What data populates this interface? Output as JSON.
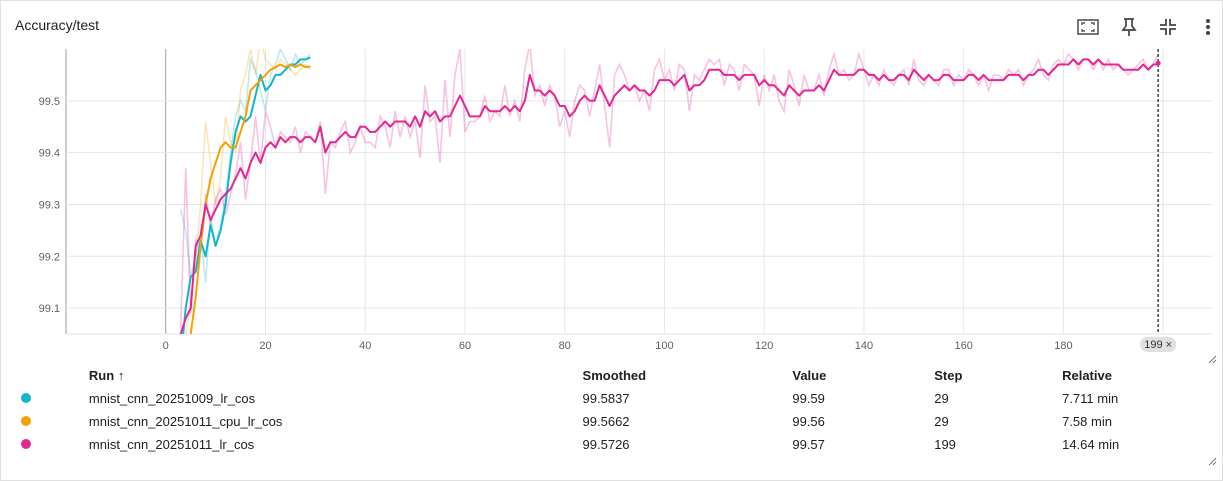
{
  "header": {
    "title": "Accuracy/test",
    "icons": [
      "fit-domain-icon",
      "pin-icon",
      "collapse-icon",
      "more-vert-icon"
    ]
  },
  "table": {
    "columns": [
      "Run",
      "Smoothed",
      "Value",
      "Step",
      "Relative"
    ],
    "sort_indicator": "↑",
    "rows": [
      {
        "color": "#12b5cb",
        "run": "mnist_cnn_20251009_lr_cos",
        "smoothed": "99.5837",
        "value": "99.59",
        "step": "29",
        "relative": "7.711 min"
      },
      {
        "color": "#f4a100",
        "run": "mnist_cnn_20251011_cpu_lr_cos",
        "smoothed": "99.5662",
        "value": "99.56",
        "step": "29",
        "relative": "7.58 min"
      },
      {
        "color": "#e52592",
        "run": "mnist_cnn_20251011_lr_cos",
        "smoothed": "99.5726",
        "value": "99.57",
        "step": "199",
        "relative": "14.64 min"
      }
    ]
  },
  "chart_data": {
    "type": "line",
    "title": "Accuracy/test",
    "xlim": [
      -20,
      210
    ],
    "ylim": [
      99.05,
      99.6
    ],
    "x_ticks": [
      0,
      20,
      40,
      60,
      80,
      100,
      120,
      140,
      160,
      180
    ],
    "y_ticks": [
      99.1,
      99.2,
      99.3,
      99.4,
      99.5
    ],
    "grid": true,
    "hover_step_label": "199 ×",
    "hover_step": 199,
    "series": [
      {
        "name": "mnist_cnn_20251009_lr_cos",
        "color": "#12b5cb",
        "x": [
          3,
          4,
          5,
          6,
          7,
          8,
          9,
          10,
          11,
          12,
          13,
          14,
          15,
          16,
          17,
          18,
          19,
          20,
          21,
          22,
          23,
          24,
          25,
          26,
          27,
          28,
          29
        ],
        "raw": [
          99.29,
          99.25,
          99.16,
          99.2,
          99.24,
          99.15,
          99.28,
          99.22,
          99.26,
          99.32,
          99.4,
          99.47,
          99.5,
          99.48,
          99.58,
          99.56,
          99.52,
          99.48,
          99.55,
          99.57,
          99.6,
          99.58,
          99.56,
          99.59,
          99.57,
          99.58,
          99.59
        ],
        "smoothed": [
          99.0,
          99.1,
          99.16,
          99.17,
          99.23,
          99.2,
          99.26,
          99.22,
          99.25,
          99.3,
          99.38,
          99.44,
          99.47,
          99.46,
          99.47,
          99.51,
          99.55,
          99.52,
          99.53,
          99.55,
          99.55,
          99.56,
          99.57,
          99.57,
          99.58,
          99.58,
          99.5837
        ]
      },
      {
        "name": "mnist_cnn_20251011_cpu_lr_cos",
        "color": "#f4a100",
        "x": [
          4,
          5,
          6,
          7,
          8,
          9,
          10,
          11,
          12,
          13,
          14,
          15,
          16,
          17,
          18,
          19,
          20,
          21,
          22,
          23,
          24,
          25,
          26,
          27,
          28,
          29
        ],
        "raw": [
          99.05,
          99.1,
          99.2,
          99.3,
          99.46,
          99.38,
          99.3,
          99.35,
          99.47,
          99.42,
          99.4,
          99.52,
          99.55,
          99.6,
          99.55,
          99.62,
          99.58,
          99.57,
          99.56,
          99.58,
          99.57,
          99.56,
          99.55,
          99.56,
          99.57,
          99.56
        ],
        "smoothed": [
          99.03,
          99.05,
          99.12,
          99.22,
          99.3,
          99.35,
          99.38,
          99.41,
          99.42,
          99.41,
          99.41,
          99.44,
          99.47,
          99.52,
          99.53,
          99.54,
          99.55,
          99.56,
          99.565,
          99.57,
          99.565,
          99.57,
          99.565,
          99.57,
          99.565,
          99.5662
        ]
      },
      {
        "name": "mnist_cnn_20251011_lr_cos",
        "color": "#e52592",
        "x": [
          3,
          4,
          5,
          6,
          7,
          8,
          9,
          10,
          11,
          12,
          13,
          14,
          15,
          16,
          17,
          18,
          19,
          20,
          21,
          22,
          23,
          24,
          25,
          26,
          27,
          28,
          29,
          30,
          31,
          32,
          33,
          34,
          35,
          36,
          37,
          38,
          39,
          40,
          41,
          42,
          43,
          44,
          45,
          46,
          47,
          48,
          49,
          50,
          51,
          52,
          53,
          54,
          55,
          56,
          57,
          58,
          59,
          60,
          61,
          62,
          63,
          64,
          65,
          66,
          67,
          68,
          69,
          70,
          71,
          72,
          73,
          74,
          75,
          76,
          77,
          78,
          79,
          80,
          81,
          82,
          83,
          84,
          85,
          86,
          87,
          88,
          89,
          90,
          91,
          92,
          93,
          94,
          95,
          96,
          97,
          98,
          99,
          100,
          101,
          102,
          103,
          104,
          105,
          106,
          107,
          108,
          109,
          110,
          111,
          112,
          113,
          114,
          115,
          116,
          117,
          118,
          119,
          120,
          121,
          122,
          123,
          124,
          125,
          126,
          127,
          128,
          129,
          130,
          131,
          132,
          133,
          134,
          135,
          136,
          137,
          138,
          139,
          140,
          141,
          142,
          143,
          144,
          145,
          146,
          147,
          148,
          149,
          150,
          151,
          152,
          153,
          154,
          155,
          156,
          157,
          158,
          159,
          160,
          161,
          162,
          163,
          164,
          165,
          166,
          167,
          168,
          169,
          170,
          171,
          172,
          173,
          174,
          175,
          176,
          177,
          178,
          179,
          180,
          181,
          182,
          183,
          184,
          185,
          186,
          187,
          188,
          189,
          190,
          191,
          192,
          193,
          194,
          195,
          196,
          197,
          198,
          199
        ],
        "raw": [
          99.06,
          99.37,
          99.09,
          99.23,
          99.21,
          99.32,
          99.26,
          99.31,
          99.33,
          99.28,
          99.32,
          99.36,
          99.42,
          99.31,
          99.38,
          99.47,
          99.38,
          99.48,
          99.45,
          99.41,
          99.44,
          99.43,
          99.42,
          99.45,
          99.4,
          99.44,
          99.43,
          99.42,
          99.46,
          99.32,
          99.42,
          99.41,
          99.44,
          99.46,
          99.4,
          99.42,
          99.45,
          99.42,
          99.42,
          99.41,
          99.47,
          99.45,
          99.41,
          99.48,
          99.43,
          99.47,
          99.43,
          99.46,
          99.39,
          99.53,
          99.46,
          99.47,
          99.38,
          99.54,
          99.43,
          99.55,
          99.6,
          99.44,
          99.46,
          99.46,
          99.47,
          99.51,
          99.46,
          99.48,
          99.47,
          99.53,
          99.47,
          99.5,
          99.46,
          99.56,
          99.61,
          99.51,
          99.53,
          99.49,
          99.53,
          99.51,
          99.45,
          99.48,
          99.43,
          99.5,
          99.53,
          99.52,
          99.47,
          99.52,
          99.57,
          99.49,
          99.41,
          99.55,
          99.57,
          99.55,
          99.52,
          99.53,
          99.5,
          99.52,
          99.48,
          99.56,
          99.58,
          99.54,
          99.56,
          99.52,
          99.57,
          99.56,
          99.48,
          99.55,
          99.54,
          99.56,
          99.58,
          99.57,
          99.58,
          99.53,
          99.57,
          99.56,
          99.52,
          99.57,
          99.56,
          99.55,
          99.49,
          99.55,
          99.52,
          99.55,
          99.5,
          99.48,
          99.56,
          99.53,
          99.49,
          99.55,
          99.52,
          99.52,
          99.55,
          99.51,
          99.56,
          99.59,
          99.55,
          99.56,
          99.54,
          99.55,
          99.59,
          99.56,
          99.53,
          99.55,
          99.53,
          99.56,
          99.54,
          99.53,
          99.55,
          99.56,
          99.53,
          99.58,
          99.54,
          99.53,
          99.55,
          99.54,
          99.53,
          99.56,
          99.56,
          99.53,
          99.55,
          99.54,
          99.56,
          99.55,
          99.53,
          99.55,
          99.52,
          99.55,
          99.55,
          99.54,
          99.56,
          99.55,
          99.56,
          99.53,
          99.55,
          99.56,
          99.58,
          99.55,
          99.54,
          99.57,
          99.58,
          99.57,
          99.59,
          99.58,
          99.56,
          99.58,
          99.58,
          99.56,
          99.58,
          99.56,
          99.58,
          99.56,
          99.57,
          99.56,
          99.55,
          99.56,
          99.57,
          99.58,
          99.56,
          99.57,
          99.59,
          99.57,
          99.56,
          99.58,
          99.57
        ],
        "smoothed": [
          99.05,
          99.08,
          99.1,
          99.22,
          99.24,
          99.3,
          99.27,
          99.29,
          99.31,
          99.32,
          99.33,
          99.35,
          99.37,
          99.35,
          99.38,
          99.4,
          99.38,
          99.41,
          99.42,
          99.41,
          99.43,
          99.42,
          99.43,
          99.43,
          99.42,
          99.43,
          99.43,
          99.42,
          99.45,
          99.4,
          99.42,
          99.42,
          99.43,
          99.44,
          99.43,
          99.43,
          99.45,
          99.45,
          99.44,
          99.44,
          99.45,
          99.46,
          99.45,
          99.46,
          99.46,
          99.46,
          99.45,
          99.47,
          99.45,
          99.48,
          99.47,
          99.48,
          99.46,
          99.47,
          99.47,
          99.49,
          99.51,
          99.49,
          99.47,
          99.47,
          99.47,
          99.49,
          99.48,
          99.48,
          99.48,
          99.49,
          99.48,
          99.49,
          99.48,
          99.5,
          99.55,
          99.52,
          99.52,
          99.51,
          99.52,
          99.51,
          99.49,
          99.49,
          99.47,
          99.48,
          99.5,
          99.51,
          99.5,
          99.5,
          99.53,
          99.51,
          99.49,
          99.51,
          99.52,
          99.53,
          99.52,
          99.53,
          99.52,
          99.52,
          99.51,
          99.52,
          99.54,
          99.54,
          99.54,
          99.53,
          99.54,
          99.55,
          99.52,
          99.53,
          99.53,
          99.54,
          99.56,
          99.56,
          99.56,
          99.55,
          99.55,
          99.55,
          99.54,
          99.55,
          99.55,
          99.55,
          99.53,
          99.54,
          99.53,
          99.53,
          99.52,
          99.51,
          99.53,
          99.52,
          99.51,
          99.52,
          99.52,
          99.52,
          99.53,
          99.52,
          99.54,
          99.56,
          99.55,
          99.55,
          99.55,
          99.55,
          99.56,
          99.56,
          99.55,
          99.55,
          99.54,
          99.55,
          99.54,
          99.54,
          99.55,
          99.55,
          99.54,
          99.56,
          99.55,
          99.54,
          99.55,
          99.54,
          99.54,
          99.55,
          99.55,
          99.54,
          99.54,
          99.54,
          99.55,
          99.55,
          99.54,
          99.55,
          99.54,
          99.54,
          99.54,
          99.54,
          99.55,
          99.55,
          99.55,
          99.54,
          99.55,
          99.55,
          99.56,
          99.56,
          99.55,
          99.56,
          99.57,
          99.57,
          99.57,
          99.58,
          99.57,
          99.58,
          99.58,
          99.57,
          99.58,
          99.57,
          99.57,
          99.57,
          99.57,
          99.56,
          99.56,
          99.56,
          99.56,
          99.57,
          99.56,
          99.57,
          99.57,
          99.57,
          99.57,
          99.57,
          99.5726
        ]
      }
    ]
  }
}
